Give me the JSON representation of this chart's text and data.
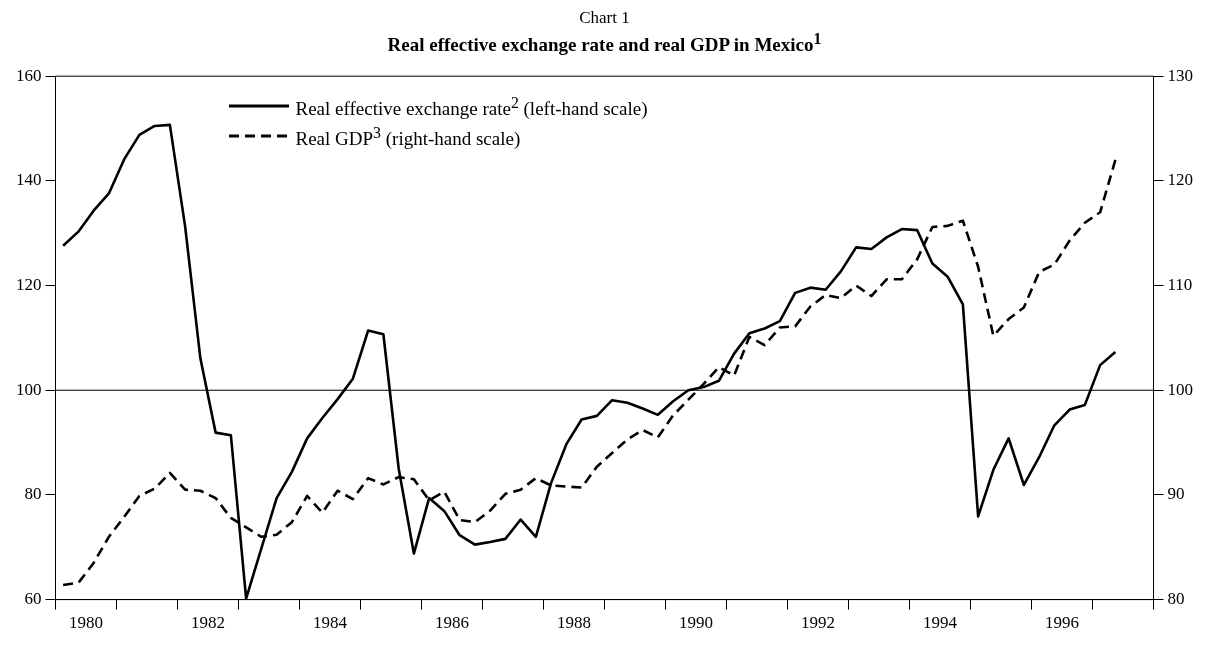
{
  "chart_data": {
    "type": "line",
    "subtitle": "Chart 1",
    "title": "Real effective exchange rate and real GDP in Mexico$^{1}$",
    "x": [
      1980.125,
      1980.375,
      1980.625,
      1980.875,
      1981.125,
      1981.375,
      1981.625,
      1981.875,
      1982.125,
      1982.375,
      1982.625,
      1982.875,
      1983.125,
      1983.375,
      1983.625,
      1983.875,
      1984.125,
      1984.375,
      1984.625,
      1984.875,
      1985.125,
      1985.375,
      1985.625,
      1985.875,
      1986.125,
      1986.375,
      1986.625,
      1986.875,
      1987.125,
      1987.375,
      1987.625,
      1987.875,
      1988.125,
      1988.375,
      1988.625,
      1988.875,
      1989.125,
      1989.375,
      1989.625,
      1989.875,
      1990.125,
      1990.375,
      1990.625,
      1990.875,
      1991.125,
      1991.375,
      1991.625,
      1991.875,
      1992.125,
      1992.375,
      1992.625,
      1992.875,
      1993.125,
      1993.375,
      1993.625,
      1993.875,
      1994.125,
      1994.375,
      1994.625,
      1994.875,
      1995.125,
      1995.375,
      1995.625,
      1995.875,
      1996.125,
      1996.375,
      1996.625,
      1996.875,
      1997.125,
      1997.375
    ],
    "series": [
      {
        "name": "Real effective exchange rate$^{2}$ (left-hand scale)",
        "color": "#000000",
        "line_style": "solid",
        "values": [
          127.6,
          130.3,
          134.3,
          137.6,
          144.1,
          148.8,
          150.5,
          150.7,
          131.3,
          106.1,
          91.9,
          91.4,
          60.2,
          69.8,
          79.4,
          84.4,
          90.8,
          94.7,
          98.3,
          102.2,
          111.4,
          110.7,
          85.1,
          68.8,
          79.4,
          76.9,
          72.3,
          70.5,
          71.0,
          71.6,
          75.3,
          72.0,
          82.3,
          89.7,
          94.4,
          95.1,
          98.1,
          97.6,
          96.5,
          95.3,
          97.9,
          100.0,
          100.6,
          101.8,
          107.0,
          110.9,
          111.8,
          113.2,
          118.6,
          119.6,
          119.2,
          122.7,
          127.3,
          127.0,
          129.2,
          130.8,
          130.6,
          124.2,
          121.7,
          116.4,
          75.9,
          84.8,
          90.8,
          81.9,
          87.2,
          93.3,
          96.3,
          97.2,
          104.8,
          107.3
        ]
      },
      {
        "name": "Real GDP$^{3}$ (right-hand scale)",
        "color": "#000000",
        "line_style": "dashed",
        "axis": "y2",
        "values": [
          81.4,
          81.6,
          83.5,
          86.0,
          87.9,
          89.9,
          90.6,
          92.1,
          90.5,
          90.4,
          89.7,
          87.8,
          86.9,
          86.0,
          86.2,
          87.4,
          89.9,
          88.3,
          90.4,
          89.6,
          91.6,
          91.0,
          91.7,
          91.5,
          89.5,
          90.3,
          87.6,
          87.4,
          88.5,
          90.1,
          90.5,
          91.6,
          90.9,
          90.8,
          90.7,
          92.7,
          94.0,
          95.3,
          96.2,
          95.5,
          97.6,
          99.1,
          100.6,
          102.2,
          101.4,
          105.1,
          104.3,
          106.0,
          106.1,
          108.0,
          109.1,
          108.8,
          110.0,
          109.0,
          110.6,
          110.6,
          112.5,
          115.6,
          115.7,
          116.2,
          111.8,
          105.2,
          106.8,
          107.9,
          111.3,
          112.0,
          114.3,
          116.0,
          117.0,
          122.0
        ]
      }
    ],
    "xlim": [
      1980,
      1998
    ],
    "xticks": [
      {
        "value": 1980,
        "label": null
      },
      {
        "value": 1980.5,
        "label": "1980"
      },
      {
        "value": 1981,
        "label": null
      },
      {
        "value": 1982,
        "label": null
      },
      {
        "value": 1982.5,
        "label": "1982"
      },
      {
        "value": 1983,
        "label": null
      },
      {
        "value": 1984,
        "label": null
      },
      {
        "value": 1984.5,
        "label": "1984"
      },
      {
        "value": 1985,
        "label": null
      },
      {
        "value": 1986,
        "label": null
      },
      {
        "value": 1986.5,
        "label": "1986"
      },
      {
        "value": 1987,
        "label": null
      },
      {
        "value": 1988,
        "label": null
      },
      {
        "value": 1988.5,
        "label": "1988"
      },
      {
        "value": 1989,
        "label": null
      },
      {
        "value": 1990,
        "label": null
      },
      {
        "value": 1990.5,
        "label": "1990"
      },
      {
        "value": 1991,
        "label": null
      },
      {
        "value": 1992,
        "label": null
      },
      {
        "value": 1992.5,
        "label": "1992"
      },
      {
        "value": 1993,
        "label": null
      },
      {
        "value": 1994,
        "label": null
      },
      {
        "value": 1994.5,
        "label": "1994"
      },
      {
        "value": 1995,
        "label": null
      },
      {
        "value": 1996,
        "label": null
      },
      {
        "value": 1996.5,
        "label": "1996"
      },
      {
        "value": 1997,
        "label": null
      },
      {
        "value": 1998,
        "label": null
      }
    ],
    "ylim": [
      60,
      160
    ],
    "yticks": [
      60,
      80,
      100,
      120,
      140,
      160
    ],
    "y2lim": [
      80,
      130
    ],
    "y2ticks": [
      80,
      90,
      100,
      110,
      120,
      130
    ],
    "ref_lines": [
      {
        "axis": "y",
        "value": 100
      }
    ],
    "grid": false,
    "legend": "top"
  }
}
